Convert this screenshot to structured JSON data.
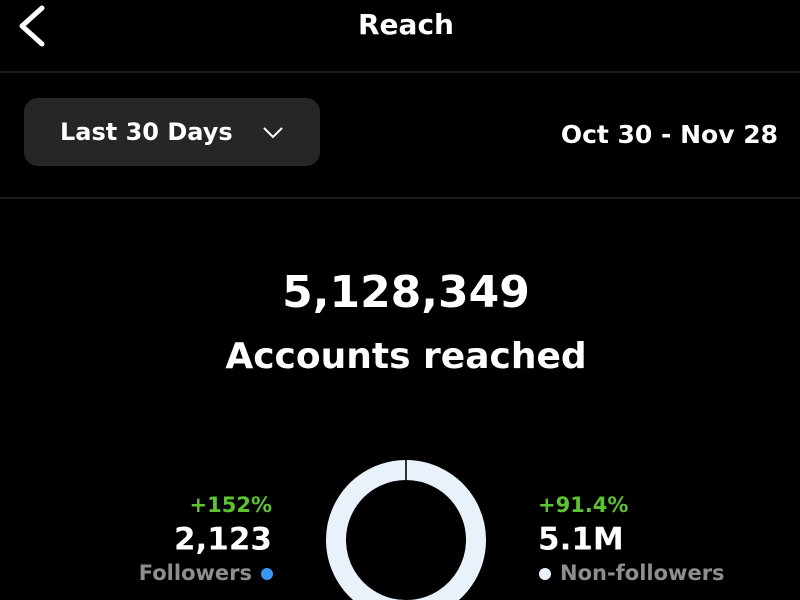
{
  "header": {
    "title": "Reach"
  },
  "filter": {
    "label": "Last 30 Days"
  },
  "date_range": "Oct 30 - Nov 28",
  "total": {
    "value": "5,128,349",
    "label": "Accounts reached"
  },
  "breakdown": [
    {
      "change": "+152%",
      "value": 2123,
      "value_label": "2,123",
      "label": "Followers",
      "color": "#3897f0"
    },
    {
      "change": "+91.4%",
      "value": 5100000,
      "value_label": "5.1M",
      "label": "Non-followers",
      "color": "#e9f1fb"
    }
  ]
}
